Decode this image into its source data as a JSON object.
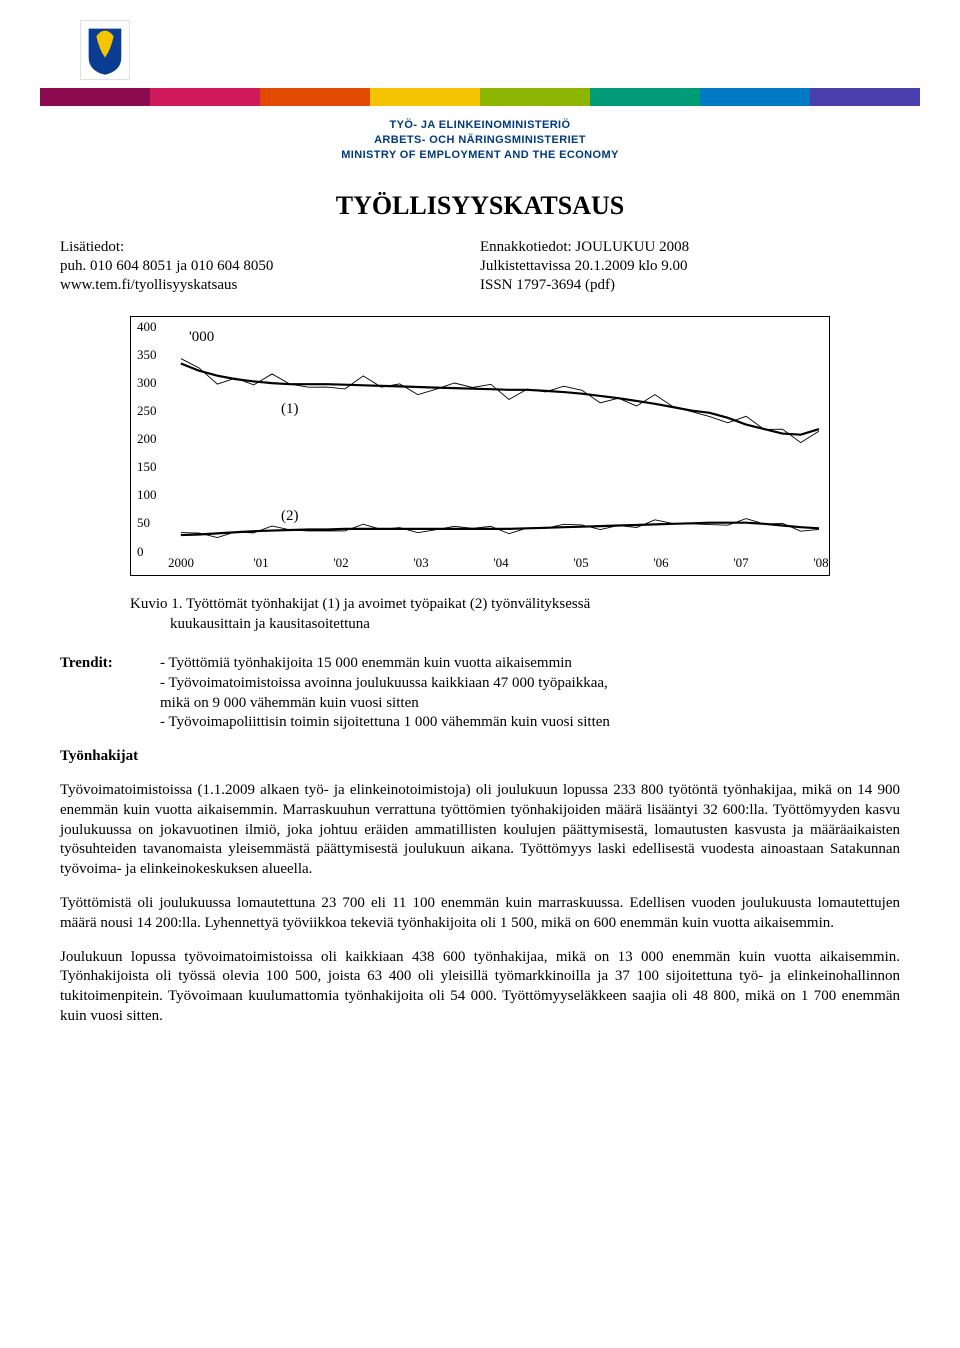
{
  "header": {
    "ministry_fi": "TYÖ- JA ELINKEINOMINISTERIÖ",
    "ministry_sv": "ARBETS- OCH NÄRINGSMINISTERIET",
    "ministry_en": "MINISTRY OF EMPLOYMENT AND THE ECONOMY",
    "stripe_colors_top": [
      "#8b0a50",
      "#d11a5b",
      "#e24a00",
      "#f4c400",
      "#8db600",
      "#009b77",
      "#007ac2",
      "#4b3fae"
    ],
    "stripe_colors_bottom": [
      "#8b0a50",
      "#d11a5b",
      "#e24a00",
      "#f4c400",
      "#8db600",
      "#009b77",
      "#007ac2",
      "#4b3fae"
    ]
  },
  "title": "TYÖLLISYYSKATSAUS",
  "meta": {
    "left1": "Lisätiedot:",
    "left2": "puh. 010 604 8051 ja 010 604 8050",
    "left3": "www.tem.fi/tyollisyyskatsaus",
    "right1": "Ennakkotiedot: JOULUKUU 2008",
    "right2": "Julkistettavissa 20.1.2009 klo 9.00",
    "right3": "ISSN 1797-3694 (pdf)"
  },
  "chart": {
    "y_min": 0,
    "y_max": 400,
    "y_step": 50,
    "x_labels": [
      "2000",
      "'01",
      "'02",
      "'03",
      "'04",
      "'05",
      "'06",
      "'07",
      "'08"
    ],
    "unit_label": "'000",
    "annot1": "(1)",
    "annot2": "(2)",
    "series1_trend": [
      335,
      322,
      313,
      307,
      303,
      300,
      298,
      298,
      298,
      297,
      296,
      295,
      294,
      293,
      292,
      291,
      290,
      289,
      288,
      288,
      286,
      284,
      281,
      277,
      273,
      268,
      263,
      257,
      251,
      247,
      238,
      226,
      218,
      210,
      208,
      218
    ],
    "series2_trend": [
      29,
      30,
      32,
      34,
      36,
      37,
      38,
      39,
      39,
      40,
      40,
      40,
      40,
      40,
      40,
      40,
      40,
      40,
      40,
      41,
      42,
      43,
      44,
      45,
      46,
      47,
      48,
      49,
      50,
      51,
      51,
      51,
      49,
      46,
      43,
      41
    ],
    "line_color": "#000000",
    "line_width_trend": 2.2,
    "line_width_raw": 0.9,
    "noise_amp1": 18,
    "noise_amp2": 9
  },
  "caption": "Kuvio 1. Työttömät työnhakijat (1) ja avoimet työpaikat (2) työnvälityksessä\n              kuukausittain ja kausitasoitettuna",
  "trendit": {
    "label": "Trendit:",
    "items": "- Työttömiä työnhakijoita 15 000 enemmän kuin vuotta aikaisemmin\n- Työvoimatoimistoissa avoinna joulukuussa kaikkiaan 47 000 työpaikkaa,\n  mikä on 9 000 vähemmän kuin vuosi sitten\n- Työvoimapoliittisin toimin sijoitettuna 1 000 vähemmän kuin vuosi sitten"
  },
  "section_head": "Työnhakijat",
  "paras": [
    "Työvoimatoimistoissa (1.1.2009 alkaen työ- ja elinkeinotoimistoja) oli joulukuun lopussa 233 800 työtöntä työnhakijaa, mikä on 14 900 enemmän kuin vuotta aikaisemmin. Marraskuuhun verrattuna työttömien työnhakijoiden määrä lisääntyi 32 600:lla. Työttömyyden kasvu joulukuussa on jokavuotinen ilmiö, joka johtuu eräiden ammatillisten koulujen päättymisestä, lomautusten kasvusta ja määräaikaisten työsuhteiden tavanomaista yleisemmästä päättymisestä joulukuun aikana. Työttömyys laski edellisestä vuodesta ainoastaan Satakunnan työvoima- ja elinkeinokeskuksen alueella.",
    "Työttömistä oli joulukuussa lomautettuna 23 700 eli 11 100 enemmän kuin marraskuussa. Edellisen vuoden joulukuusta lomautettujen määrä nousi 14 200:lla. Lyhennettyä työviikkoa tekeviä työnhakijoita oli 1 500, mikä on 600 enemmän kuin vuotta aikaisemmin.",
    "Joulukuun lopussa työvoimatoimistoissa oli kaikkiaan 438 600 työnhakijaa, mikä on 13 000 enemmän kuin vuotta aikaisemmin. Työnhakijoista oli työssä olevia 100 500, joista 63 400 oli yleisillä työmarkkinoilla ja 37 100 sijoitettuna työ- ja elinkeinohallinnon tukitoimenpitein. Työvoimaan kuulumattomia työnhakijoita oli 54 000. Työttömyyseläkkeen saajia oli 48 800, mikä on 1 700 enemmän kuin vuosi sitten."
  ]
}
